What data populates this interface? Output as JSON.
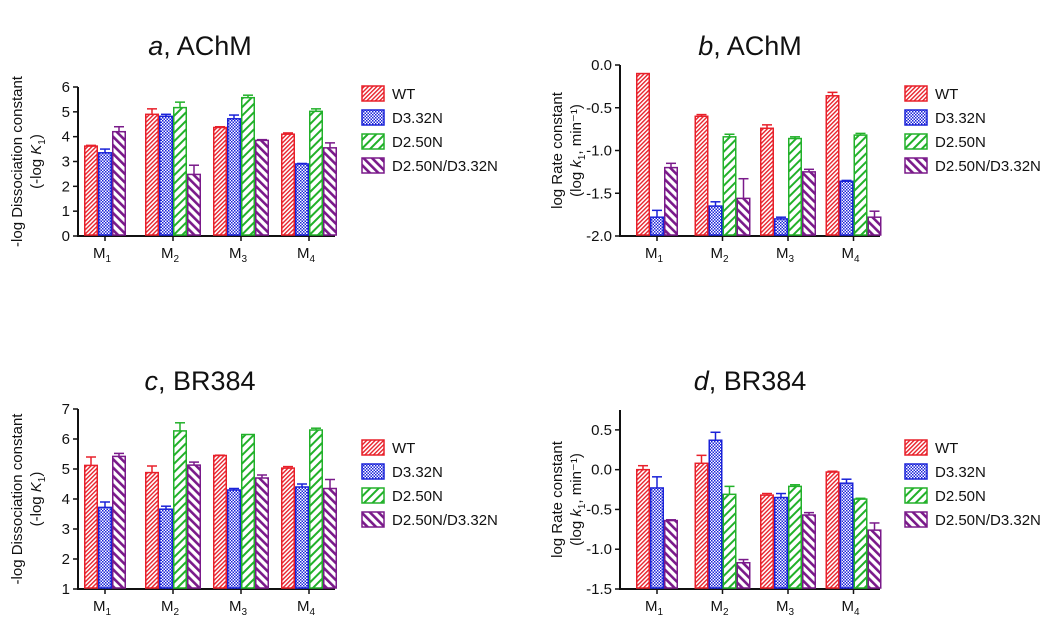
{
  "colors": {
    "WT": "#e8202a",
    "D3.32N": "#1a22d8",
    "D2.50N": "#22b12a",
    "D2.50N/D3.32N": "#7a1a8a"
  },
  "chart_data": [
    {
      "type": "bar",
      "title_letter": "a",
      "title_rest": ", AChM",
      "ylabel_line1": "-log Dissociation constant",
      "ylabel_line2_pre": "(-log ",
      "ylabel_line2_italic": "K",
      "ylabel_line2_sub": "1",
      "ylabel_line2_post": ")",
      "ylim": [
        0,
        6
      ],
      "yticks": [
        "0",
        "1",
        "2",
        "3",
        "4",
        "5",
        "6"
      ],
      "ytick_values": [
        0,
        1,
        2,
        3,
        4,
        5,
        6
      ],
      "categories": [
        {
          "main": "M",
          "sub": "1"
        },
        {
          "main": "M",
          "sub": "2"
        },
        {
          "main": "M",
          "sub": "3"
        },
        {
          "main": "M",
          "sub": "4"
        }
      ],
      "legend": "right",
      "series": [
        {
          "name": "WT",
          "values": [
            3.62,
            4.9,
            4.37,
            4.1
          ],
          "errors": [
            0.03,
            0.22,
            0.03,
            0.05
          ]
        },
        {
          "name": "D3.32N",
          "values": [
            3.35,
            4.82,
            4.72,
            2.9
          ],
          "errors": [
            0.15,
            0.08,
            0.15,
            0.02
          ]
        },
        {
          "name": "D2.50N",
          "values": [
            null,
            5.17,
            5.57,
            5.02
          ],
          "errors": [
            null,
            0.22,
            0.1,
            0.1
          ]
        },
        {
          "name": "D2.50N/D3.32N",
          "values": [
            4.2,
            2.48,
            3.85,
            3.55
          ],
          "errors": [
            0.2,
            0.37,
            0.03,
            0.2
          ]
        }
      ]
    },
    {
      "type": "bar",
      "title_letter": "b",
      "title_rest": ", AChM",
      "ylabel_line1": "log Rate constant",
      "ylabel_line2_pre": "(log ",
      "ylabel_line2_italic": "k",
      "ylabel_line2_sub": "1",
      "ylabel_line2_post": ", min⁻¹)",
      "ylim": [
        -2.0,
        0.0
      ],
      "yticks": [
        "-2.0",
        "-1.5",
        "-1.0",
        "-0.5",
        "0.0"
      ],
      "ytick_values": [
        -2.0,
        -1.5,
        -1.0,
        -0.5,
        0.0
      ],
      "categories": [
        {
          "main": "M",
          "sub": "1"
        },
        {
          "main": "M",
          "sub": "2"
        },
        {
          "main": "M",
          "sub": "3"
        },
        {
          "main": "M",
          "sub": "4"
        }
      ],
      "legend": "right",
      "series": [
        {
          "name": "WT",
          "values": [
            -0.1,
            -0.6,
            -0.74,
            -0.36
          ],
          "errors": [
            0,
            0.02,
            0.04,
            0.04
          ]
        },
        {
          "name": "D3.32N",
          "values": [
            -1.78,
            -1.65,
            -1.8,
            -1.36
          ],
          "errors": [
            0.08,
            0.05,
            0.02,
            0.01
          ]
        },
        {
          "name": "D2.50N",
          "values": [
            null,
            -0.84,
            -0.86,
            -0.82
          ],
          "errors": [
            null,
            0.03,
            0.02,
            0.02
          ]
        },
        {
          "name": "D2.50N/D3.32N",
          "values": [
            -1.2,
            -1.56,
            -1.25,
            -1.78
          ],
          "errors": [
            0.05,
            0.23,
            0.03,
            0.07
          ]
        }
      ]
    },
    {
      "type": "bar",
      "title_letter": "c",
      "title_rest": ", BR384",
      "ylabel_line1": "-log Dissociation constant",
      "ylabel_line2_pre": "(-log ",
      "ylabel_line2_italic": "K",
      "ylabel_line2_sub": "1",
      "ylabel_line2_post": ")",
      "ylim": [
        1,
        7
      ],
      "yticks": [
        "1",
        "2",
        "3",
        "4",
        "5",
        "6",
        "7"
      ],
      "ytick_values": [
        1,
        2,
        3,
        4,
        5,
        6,
        7
      ],
      "categories": [
        {
          "main": "M",
          "sub": "1"
        },
        {
          "main": "M",
          "sub": "2"
        },
        {
          "main": "M",
          "sub": "3"
        },
        {
          "main": "M",
          "sub": "4"
        }
      ],
      "legend": "right",
      "series": [
        {
          "name": "WT",
          "values": [
            5.12,
            4.88,
            5.45,
            5.03
          ],
          "errors": [
            0.28,
            0.22,
            0.01,
            0.05
          ]
        },
        {
          "name": "D3.32N",
          "values": [
            3.72,
            3.66,
            4.3,
            4.4
          ],
          "errors": [
            0.18,
            0.1,
            0.05,
            0.1
          ]
        },
        {
          "name": "D2.50N",
          "values": [
            null,
            6.27,
            6.15,
            6.3
          ],
          "errors": [
            null,
            0.27,
            0,
            0.06
          ]
        },
        {
          "name": "D2.50N/D3.32N",
          "values": [
            5.42,
            5.13,
            4.7,
            4.35
          ],
          "errors": [
            0.1,
            0.1,
            0.1,
            0.3
          ]
        }
      ]
    },
    {
      "type": "bar",
      "title_letter": "d",
      "title_rest": ", BR384",
      "ylabel_line1": "log Rate constant",
      "ylabel_line2_pre": "(log ",
      "ylabel_line2_italic": "k",
      "ylabel_line2_sub": "1",
      "ylabel_line2_post": ", min⁻¹)",
      "ylim": [
        -1.5,
        0.75
      ],
      "yticks": [
        "-1.5",
        "-1.0",
        "-0.5",
        "0.0",
        "0.5"
      ],
      "ytick_values": [
        -1.5,
        -1.0,
        -0.5,
        0.0,
        0.5
      ],
      "categories": [
        {
          "main": "M",
          "sub": "1"
        },
        {
          "main": "M",
          "sub": "2"
        },
        {
          "main": "M",
          "sub": "3"
        },
        {
          "main": "M",
          "sub": "4"
        }
      ],
      "legend": "right",
      "series": [
        {
          "name": "WT",
          "values": [
            0.0,
            0.08,
            -0.32,
            -0.03
          ],
          "errors": [
            0.05,
            0.1,
            0.02,
            0.01
          ]
        },
        {
          "name": "D3.32N",
          "values": [
            -0.23,
            0.37,
            -0.35,
            -0.17
          ],
          "errors": [
            0.14,
            0.1,
            0.05,
            0.05
          ]
        },
        {
          "name": "D2.50N",
          "values": [
            null,
            -0.31,
            -0.21,
            -0.37
          ],
          "errors": [
            null,
            0.1,
            0.02,
            0.01
          ]
        },
        {
          "name": "D2.50N/D3.32N",
          "values": [
            -0.64,
            -1.17,
            -0.57,
            -0.76
          ],
          "errors": [
            0.01,
            0.04,
            0.03,
            0.09
          ]
        }
      ]
    }
  ]
}
